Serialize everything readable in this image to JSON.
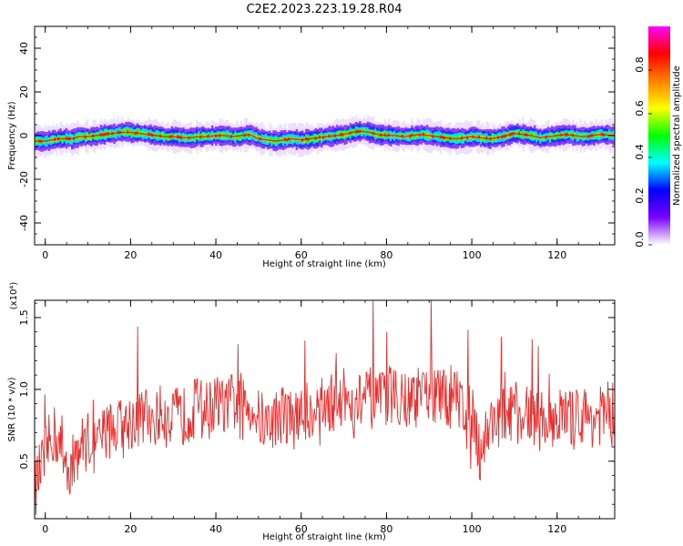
{
  "title": "C2E2.2023.223.19.28.R04",
  "chart_data": [
    {
      "type": "heatmap",
      "xlabel": "Height of straight line (km)",
      "ylabel": "Frequency (Hz)",
      "xlim": [
        -2.5,
        133.5
      ],
      "ylim": [
        -50,
        50
      ],
      "xticks": [
        0,
        20,
        40,
        60,
        80,
        100,
        120
      ],
      "yticks": [
        -40,
        -20,
        0,
        20,
        40
      ],
      "colorbar": {
        "label": "Normalized spectral amplitude",
        "range": [
          0.0,
          1.0
        ],
        "ticks": [
          "0.0",
          "0.2",
          "0.4",
          "0.6",
          "0.8"
        ],
        "tick_values": [
          0.0,
          0.2,
          0.4,
          0.6,
          0.8
        ],
        "colormap": [
          "#ffffff",
          "#7a00ff",
          "#0000ff",
          "#00ffff",
          "#00ff00",
          "#ffff00",
          "#ff8000",
          "#ff0000",
          "#ff00ff"
        ]
      },
      "ridge": {
        "x": [
          -2.5,
          0,
          3,
          6,
          8,
          10,
          12,
          14,
          16,
          18,
          20,
          22,
          24,
          26,
          28,
          30,
          32,
          34,
          36,
          38,
          40,
          42,
          44,
          46,
          48,
          50,
          52,
          54,
          56,
          58,
          60,
          62,
          64,
          66,
          68,
          70,
          72,
          74,
          76,
          78,
          80,
          82,
          84,
          86,
          88,
          90,
          92,
          94,
          96,
          98,
          100,
          102,
          104,
          106,
          108,
          110,
          112,
          114,
          116,
          118,
          120,
          122,
          124,
          126,
          128,
          130,
          133.5
        ],
        "y": [
          -2.5,
          -2.5,
          -1.5,
          -1.5,
          -0.5,
          -0.5,
          0,
          0.5,
          1,
          1.5,
          1.5,
          1,
          0.5,
          0,
          -0.5,
          -0.5,
          -1,
          -1,
          -0.5,
          -0.5,
          0,
          0,
          -0.5,
          0,
          0.5,
          -1.5,
          -2,
          -2.5,
          -2,
          -1.5,
          -2,
          -1.5,
          -1,
          -0.5,
          0,
          0.5,
          1.5,
          2,
          1.5,
          0.5,
          0,
          0,
          -0.5,
          0,
          0.5,
          0,
          -0.5,
          -1,
          -1.5,
          -1,
          -0.5,
          -1,
          -1.5,
          -1,
          0,
          1,
          0.5,
          0,
          -1,
          -0.5,
          0,
          0.5,
          0,
          -0.5,
          0,
          0.5,
          0
        ],
        "color": "#ff0000"
      }
    },
    {
      "type": "line",
      "xlabel": "Height of straight line (km)",
      "ylabel": "SNR (10 * v/v)",
      "y_multiplier": "(x10⁴)",
      "xlim": [
        -2.5,
        133.5
      ],
      "ylim": [
        0.1,
        1.62
      ],
      "xticks": [
        0,
        20,
        40,
        60,
        80,
        100,
        120
      ],
      "yticks": [
        0.5,
        1.0,
        1.5
      ],
      "series": [
        {
          "color": "#ee2b2b",
          "x": [
            -2.5,
            0,
            2,
            4,
            6,
            8,
            10,
            12,
            14,
            16,
            18,
            20,
            22,
            24,
            26,
            28,
            30,
            32,
            34,
            36,
            38,
            40,
            42,
            44,
            46,
            48,
            50,
            52,
            54,
            56,
            58,
            60,
            62,
            64,
            66,
            68,
            70,
            72,
            74,
            76,
            78,
            80,
            82,
            84,
            86,
            88,
            90,
            92,
            94,
            96,
            98,
            100,
            102,
            104,
            106,
            108,
            110,
            112,
            114,
            116,
            118,
            120,
            122,
            124,
            126,
            128,
            130,
            133.5
          ],
          "y": [
            0.3,
            0.55,
            0.7,
            0.55,
            0.45,
            0.6,
            0.65,
            0.6,
            0.7,
            0.75,
            0.72,
            0.78,
            0.8,
            0.82,
            0.8,
            0.85,
            0.82,
            0.8,
            0.85,
            0.9,
            0.85,
            0.9,
            0.88,
            0.92,
            0.85,
            0.9,
            0.8,
            0.75,
            0.8,
            0.85,
            0.78,
            0.82,
            0.85,
            0.9,
            0.88,
            0.92,
            0.95,
            0.9,
            0.92,
            0.95,
            0.9,
            0.95,
            0.98,
            0.95,
            0.92,
            0.95,
            0.98,
            0.95,
            0.92,
            0.95,
            0.9,
            0.88,
            0.55,
            0.75,
            0.8,
            0.82,
            0.85,
            0.8,
            0.82,
            0.78,
            0.8,
            0.82,
            0.8,
            0.78,
            0.82,
            0.8,
            0.82,
            0.78
          ]
        }
      ]
    }
  ]
}
